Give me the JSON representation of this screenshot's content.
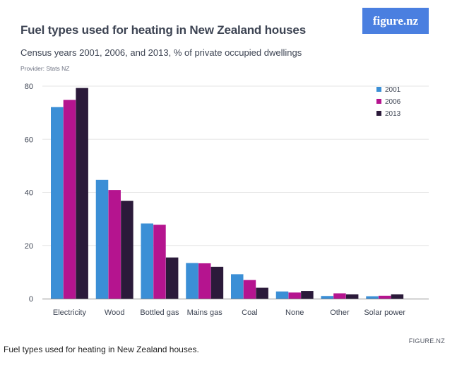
{
  "header": {
    "title": "Fuel types used for heating in New Zealand houses",
    "subtitle": "Census years 2001, 2006, and 2013, % of private occupied dwellings",
    "provider": "Provider: Stats NZ",
    "logo_text": "figure.nz"
  },
  "footer": {
    "source": "FIGURE.NZ",
    "caption": "Fuel types used for heating in New Zealand houses."
  },
  "colors": {
    "series_2001": "#3b8fd6",
    "series_2006": "#b5148f",
    "series_2013": "#2b1a3a",
    "logo_bg": "#4a7fe0",
    "grid": "#e6e6e6",
    "axis": "#8a8a8a",
    "text": "#3d4453"
  },
  "chart_data": {
    "type": "bar",
    "title": "Fuel types used for heating in New Zealand houses",
    "subtitle": "Census years 2001, 2006, and 2013, % of private occupied dwellings",
    "xlabel": "",
    "ylabel": "",
    "ylim": [
      0,
      80
    ],
    "yticks": [
      0,
      20,
      40,
      60,
      80
    ],
    "grid": true,
    "legend_position": "top-right",
    "categories": [
      "Electricity",
      "Wood",
      "Bottled gas",
      "Mains gas",
      "Coal",
      "None",
      "Other",
      "Solar power"
    ],
    "series": [
      {
        "name": "2001",
        "values": [
          72.1,
          44.7,
          28.3,
          13.4,
          9.2,
          2.7,
          1.0,
          0.9
        ]
      },
      {
        "name": "2006",
        "values": [
          74.8,
          40.9,
          27.8,
          13.3,
          7.0,
          2.3,
          2.0,
          1.1
        ]
      },
      {
        "name": "2013",
        "values": [
          79.3,
          36.8,
          15.5,
          12.0,
          4.1,
          2.9,
          1.6,
          1.6
        ]
      }
    ]
  }
}
